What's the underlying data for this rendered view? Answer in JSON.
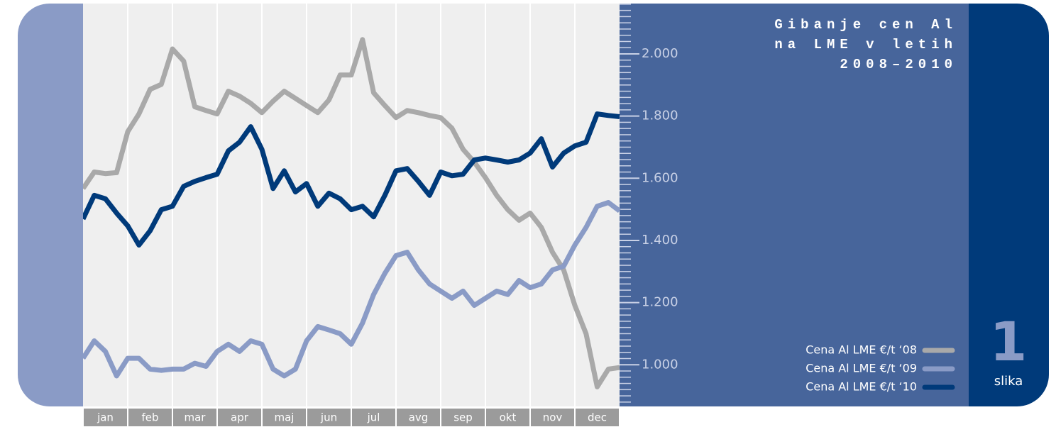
{
  "chart_data": {
    "type": "line",
    "title": [
      "Gibanje cen Al",
      "na LME v letih",
      "2008–2010"
    ],
    "figure_number": "1",
    "figure_label": "slika",
    "categories": [
      "jan",
      "feb",
      "mar",
      "apr",
      "maj",
      "jun",
      "jul",
      "avg",
      "sep",
      "okt",
      "nov",
      "dec"
    ],
    "x": [
      0,
      0.25,
      0.5,
      0.75,
      1,
      1.25,
      1.5,
      1.75,
      2,
      2.25,
      2.5,
      2.75,
      3,
      3.25,
      3.5,
      3.75,
      4,
      4.25,
      4.5,
      4.75,
      5,
      5.25,
      5.5,
      5.75,
      6,
      6.25,
      6.5,
      6.75,
      7,
      7.25,
      7.5,
      7.75,
      8,
      8.25,
      8.5,
      8.75,
      9,
      9.25,
      9.5,
      9.75,
      10,
      10.25,
      10.5,
      10.75,
      11,
      11.25,
      11.5,
      11.75,
      12
    ],
    "xlim": [
      0,
      12
    ],
    "xticks": [
      0,
      1,
      2,
      3,
      4,
      5,
      6,
      7,
      8,
      9,
      10,
      11,
      12
    ],
    "ylim": [
      866,
      2162
    ],
    "yticks": [
      {
        "value": 1000,
        "label": "1.000"
      },
      {
        "value": 1200,
        "label": "1.200"
      },
      {
        "value": 1400,
        "label": "1.400"
      },
      {
        "value": 1600,
        "label": "1.600"
      },
      {
        "value": 1800,
        "label": "1.800"
      },
      {
        "value": 2000,
        "label": "2.000"
      }
    ],
    "yminorticks": [
      880,
      900,
      920,
      940,
      960,
      980,
      1020,
      1040,
      1060,
      1080,
      1100,
      1120,
      1140,
      1160,
      1180,
      1220,
      1240,
      1260,
      1280,
      1300,
      1320,
      1340,
      1360,
      1380,
      1420,
      1440,
      1460,
      1480,
      1500,
      1520,
      1540,
      1560,
      1580,
      1620,
      1640,
      1660,
      1680,
      1700,
      1720,
      1740,
      1760,
      1780,
      1820,
      1840,
      1860,
      1880,
      1900,
      1920,
      1940,
      1960,
      1980,
      2020,
      2040,
      2060,
      2080,
      2100,
      2120,
      2140,
      2160
    ],
    "grid": true,
    "legend": "lower right",
    "series": [
      {
        "name": "Cena Al LME €/t ‘08",
        "color": "#a9a9a9",
        "values": [
          1567,
          1620,
          1615,
          1618,
          1750,
          1807,
          1886,
          1902,
          2016,
          1977,
          1830,
          1818,
          1807,
          1880,
          1864,
          1841,
          1811,
          1848,
          1880,
          1857,
          1834,
          1811,
          1852,
          1932,
          1932,
          2046,
          1875,
          1834,
          1795,
          1818,
          1811,
          1802,
          1795,
          1761,
          1693,
          1652,
          1602,
          1545,
          1499,
          1465,
          1488,
          1442,
          1362,
          1305,
          1191,
          1100,
          929,
          986,
          991
        ]
      },
      {
        "name": "Cena Al LME €/t ‘09",
        "color": "#8a9bc6",
        "values": [
          1021,
          1077,
          1043,
          964,
          1021,
          1021,
          986,
          982,
          986,
          986,
          1005,
          995,
          1043,
          1066,
          1043,
          1077,
          1066,
          986,
          964,
          986,
          1077,
          1123,
          1112,
          1100,
          1066,
          1134,
          1226,
          1294,
          1351,
          1362,
          1305,
          1260,
          1237,
          1214,
          1237,
          1191,
          1214,
          1237,
          1226,
          1271,
          1248,
          1260,
          1305,
          1317,
          1385,
          1442,
          1510,
          1522,
          1495
        ]
      },
      {
        "name": "Cena Al LME €/t ‘10",
        "color": "#003a7a",
        "values": [
          1469,
          1545,
          1534,
          1488,
          1447,
          1385,
          1431,
          1499,
          1510,
          1574,
          1590,
          1602,
          1613,
          1688,
          1716,
          1766,
          1693,
          1567,
          1624,
          1556,
          1583,
          1510,
          1552,
          1534,
          1499,
          1510,
          1476,
          1545,
          1624,
          1631,
          1590,
          1545,
          1620,
          1608,
          1613,
          1659,
          1665,
          1659,
          1652,
          1659,
          1681,
          1727,
          1636,
          1681,
          1704,
          1716,
          1807,
          1802,
          1798
        ]
      }
    ]
  }
}
